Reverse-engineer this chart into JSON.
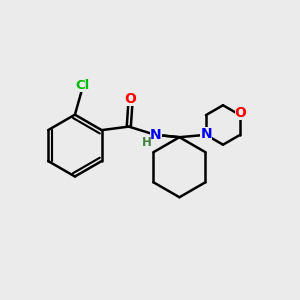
{
  "background_color": "#ebebeb",
  "atom_colors": {
    "C": "#000000",
    "N": "#0000ff",
    "O": "#ff0000",
    "Cl": "#00bb00",
    "H": "#408040"
  },
  "bond_color": "#000000",
  "bond_width": 1.8,
  "fig_size": [
    3.0,
    3.0
  ],
  "dpi": 100
}
